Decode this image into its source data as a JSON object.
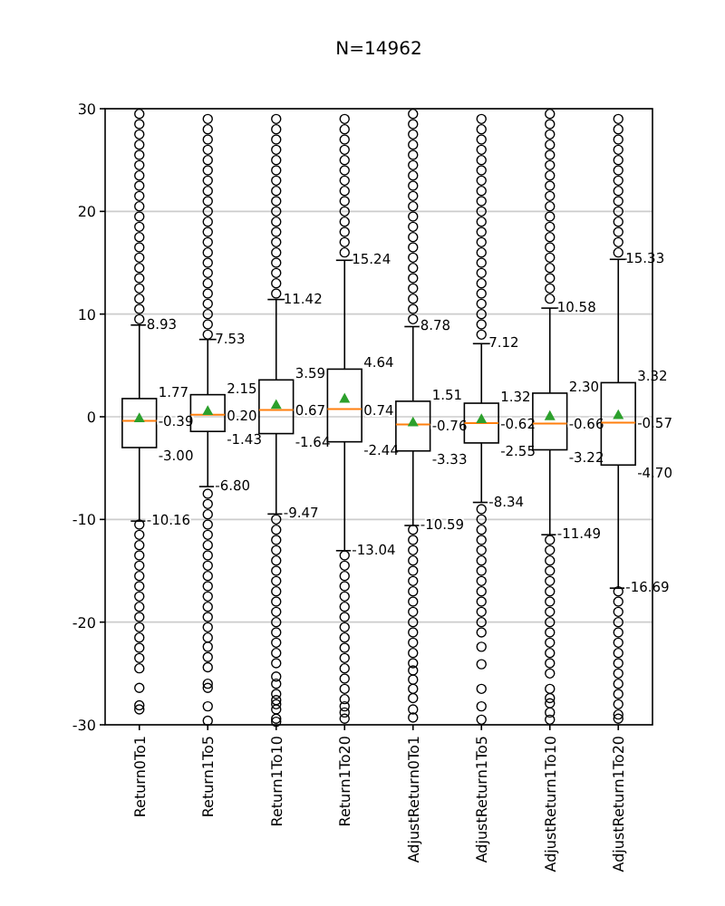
{
  "chart_data": {
    "type": "box",
    "title": "N=14962",
    "categories": [
      "Return0To1",
      "Return1To5",
      "Return1To10",
      "Return1To20",
      "AdjustReturn0To1",
      "AdjustReturn1To5",
      "AdjustReturn1To10",
      "AdjustReturn1To20"
    ],
    "boxes": [
      {
        "low": -10.16,
        "q1": -3.0,
        "median": -0.39,
        "q3": 1.77,
        "high": 8.93,
        "mean": -0.1,
        "outliers": [
          9.5,
          10.5,
          11.5,
          12.5,
          13.5,
          14.5,
          15.5,
          16.5,
          17.5,
          18.5,
          19.5,
          20.5,
          21.5,
          22.5,
          23.5,
          24.5,
          25.5,
          26.5,
          27.5,
          28.5,
          29.5,
          -10.5,
          -11.5,
          -12.5,
          -13.5,
          -14.5,
          -15.5,
          -16.5,
          -17.5,
          -18.5,
          -19.5,
          -20.5,
          -21.5,
          -22.5,
          -23.5,
          -24.5,
          -26.4,
          -28.1,
          -28.5
        ]
      },
      {
        "low": -6.8,
        "q1": -1.43,
        "median": 0.2,
        "q3": 2.15,
        "high": 7.53,
        "mean": 0.6,
        "outliers": [
          8,
          9,
          10,
          11,
          12,
          13,
          14,
          15,
          16,
          17,
          18,
          19,
          20,
          21,
          22,
          23,
          24,
          25,
          26,
          27,
          28,
          29,
          -7.5,
          -8.5,
          -9.5,
          -10.5,
          -11.5,
          -12.5,
          -13.5,
          -14.5,
          -15.5,
          -16.5,
          -17.5,
          -18.5,
          -19.5,
          -20.5,
          -21.5,
          -22.4,
          -23.4,
          -24.4,
          -26,
          -26.4,
          -28.2,
          -29.6
        ]
      },
      {
        "low": -9.47,
        "q1": -1.64,
        "median": 0.67,
        "q3": 3.59,
        "high": 11.42,
        "mean": 1.2,
        "outliers": [
          12,
          13,
          14,
          15,
          16,
          17,
          18,
          19,
          20,
          21,
          22,
          23,
          24,
          25,
          26,
          27,
          28,
          29,
          -10,
          -11,
          -12,
          -13,
          -14,
          -15,
          -16,
          -17,
          -18,
          -19,
          -20,
          -21,
          -22,
          -23,
          -24,
          -25.3,
          -26,
          -27,
          -27.6,
          -28,
          -28.5,
          -29.4,
          -29.7
        ]
      },
      {
        "low": -13.04,
        "q1": -2.44,
        "median": 0.74,
        "q3": 4.64,
        "high": 15.24,
        "mean": 1.8,
        "outliers": [
          16,
          17,
          18,
          19,
          20,
          21,
          22,
          23,
          24,
          25,
          26,
          27,
          28,
          29,
          -13.5,
          -14.5,
          -15.5,
          -16.5,
          -17.5,
          -18.5,
          -19.5,
          -20.5,
          -21.5,
          -22.5,
          -23.5,
          -24.5,
          -25.5,
          -26.5,
          -27.5,
          -28.2,
          -28.8,
          -29.4
        ]
      },
      {
        "low": -10.59,
        "q1": -3.33,
        "median": -0.76,
        "q3": 1.51,
        "high": 8.78,
        "mean": -0.5,
        "outliers": [
          9.5,
          10.5,
          11.5,
          12.5,
          13.5,
          14.5,
          15.5,
          16.5,
          17.5,
          18.5,
          19.5,
          20.5,
          21.5,
          22.5,
          23.5,
          24.5,
          25.5,
          26.5,
          27.5,
          28.5,
          29.5,
          -11,
          -12,
          -13,
          -14,
          -15,
          -16,
          -17,
          -18,
          -19,
          -20,
          -21,
          -22,
          -23,
          -24,
          -24.7,
          -25.6,
          -26.5,
          -27.4,
          -28.5,
          -29.3
        ]
      },
      {
        "low": -8.34,
        "q1": -2.55,
        "median": -0.62,
        "q3": 1.32,
        "high": 7.12,
        "mean": -0.2,
        "outliers": [
          8,
          9,
          10,
          11,
          12,
          13,
          14,
          15,
          16,
          17,
          18,
          19,
          20,
          21,
          22,
          23,
          24,
          25,
          26,
          27,
          28,
          29,
          -9,
          -10,
          -11,
          -12,
          -13,
          -14,
          -15,
          -16,
          -17,
          -18,
          -19,
          -20,
          -21,
          -22.4,
          -24.1,
          -26.5,
          -28.2,
          -29.5
        ]
      },
      {
        "low": -11.49,
        "q1": -3.22,
        "median": -0.66,
        "q3": 2.3,
        "high": 10.58,
        "mean": 0.1,
        "outliers": [
          11.5,
          12.5,
          13.5,
          14.5,
          15.5,
          16.5,
          17.5,
          18.5,
          19.5,
          20.5,
          21.5,
          22.5,
          23.5,
          24.5,
          25.5,
          26.5,
          27.5,
          28.5,
          29.5,
          -12,
          -13,
          -14,
          -15,
          -16,
          -17,
          -18,
          -19,
          -20,
          -21,
          -22,
          -23,
          -24,
          -25,
          -26.5,
          -27.4,
          -27.9,
          -28.8,
          -29.5
        ]
      },
      {
        "low": -16.69,
        "q1": -4.7,
        "median": -0.57,
        "q3": 3.32,
        "high": 15.33,
        "mean": 0.2,
        "outliers": [
          16,
          17,
          18,
          19,
          20,
          21,
          22,
          23,
          24,
          25,
          26,
          27,
          28,
          29,
          -17,
          -18,
          -19,
          -20,
          -21,
          -22,
          -23,
          -24,
          -25,
          -26,
          -27,
          -28,
          -29,
          -29.4
        ]
      }
    ],
    "annotations": [
      {
        "text": "8.93",
        "x": "Return0To1",
        "y": 8.93
      },
      {
        "text": "1.77",
        "x": "Return0To1",
        "y": 1.77
      },
      {
        "text": "-0.39",
        "x": "Return0To1",
        "y": -0.39
      },
      {
        "text": "-3.00",
        "x": "Return0To1",
        "y": -3.0
      },
      {
        "text": "-10.16",
        "x": "Return0To1",
        "y": -10.16
      },
      {
        "text": "7.53",
        "x": "Return1To5",
        "y": 7.53
      },
      {
        "text": "2.15",
        "x": "Return1To5",
        "y": 2.15
      },
      {
        "text": "0.20",
        "x": "Return1To5",
        "y": 0.2
      },
      {
        "text": "-1.43",
        "x": "Return1To5",
        "y": -1.43
      },
      {
        "text": "-6.80",
        "x": "Return1To5",
        "y": -6.8
      },
      {
        "text": "11.42",
        "x": "Return1To10",
        "y": 11.42
      },
      {
        "text": "3.59",
        "x": "Return1To10",
        "y": 3.59
      },
      {
        "text": "0.67",
        "x": "Return1To10",
        "y": 0.67
      },
      {
        "text": "-1.64",
        "x": "Return1To10",
        "y": -1.64
      },
      {
        "text": "-9.47",
        "x": "Return1To10",
        "y": -9.47
      },
      {
        "text": "15.24",
        "x": "Return1To20",
        "y": 15.24
      },
      {
        "text": "4.64",
        "x": "Return1To20",
        "y": 4.64
      },
      {
        "text": "0.74",
        "x": "Return1To20",
        "y": 0.74
      },
      {
        "text": "-2.44",
        "x": "Return1To20",
        "y": -2.44
      },
      {
        "text": "-13.04",
        "x": "Return1To20",
        "y": -13.04
      },
      {
        "text": "8.78",
        "x": "AdjustReturn0To1",
        "y": 8.78
      },
      {
        "text": "1.51",
        "x": "AdjustReturn0To1",
        "y": 1.51
      },
      {
        "text": "-0.76",
        "x": "AdjustReturn0To1",
        "y": -0.76
      },
      {
        "text": "-3.33",
        "x": "AdjustReturn0To1",
        "y": -3.33
      },
      {
        "text": "-10.59",
        "x": "AdjustReturn0To1",
        "y": -10.59
      },
      {
        "text": "7.12",
        "x": "AdjustReturn1To5",
        "y": 7.12
      },
      {
        "text": "1.32",
        "x": "AdjustReturn1To5",
        "y": 1.32
      },
      {
        "text": "-0.62",
        "x": "AdjustReturn1To5",
        "y": -0.62
      },
      {
        "text": "-2.55",
        "x": "AdjustReturn1To5",
        "y": -2.55
      },
      {
        "text": "-8.34",
        "x": "AdjustReturn1To5",
        "y": -8.34
      },
      {
        "text": "10.58",
        "x": "AdjustReturn1To10",
        "y": 10.58
      },
      {
        "text": "2.30",
        "x": "AdjustReturn1To10",
        "y": 2.3
      },
      {
        "text": "-0.66",
        "x": "AdjustReturn1To10",
        "y": -0.66
      },
      {
        "text": "-3.22",
        "x": "AdjustReturn1To10",
        "y": -3.22
      },
      {
        "text": "-11.49",
        "x": "AdjustReturn1To10",
        "y": -11.49
      },
      {
        "text": "15.33",
        "x": "AdjustReturn1To20",
        "y": 15.33
      },
      {
        "text": "3.32",
        "x": "AdjustReturn1To20",
        "y": 3.32
      },
      {
        "text": "-0.57",
        "x": "AdjustReturn1To20",
        "y": -0.57
      },
      {
        "text": "-4.70",
        "x": "AdjustReturn1To20",
        "y": -4.7
      },
      {
        "text": "-16.69",
        "x": "AdjustReturn1To20",
        "y": -16.69
      }
    ],
    "ylim": [
      -30,
      30
    ],
    "yticks": [
      -30,
      -20,
      -10,
      0,
      10,
      20,
      30
    ],
    "grid": "y",
    "marker": "triangle"
  }
}
